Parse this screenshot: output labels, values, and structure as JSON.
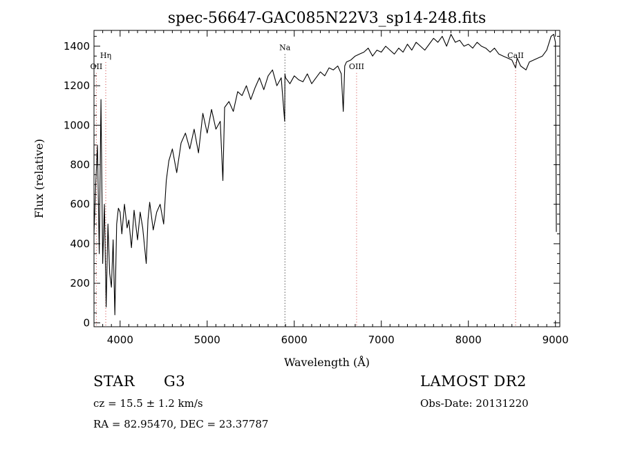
{
  "chart_data": {
    "type": "line",
    "title": "spec-56647-GAC085N22V3_sp14-248.fits",
    "xlabel": "Wavelength (Å)",
    "ylabel": "Flux (relative)",
    "xlim": [
      3700,
      9050
    ],
    "ylim": [
      -20,
      1480
    ],
    "xticks": [
      4000,
      5000,
      6000,
      7000,
      8000,
      9000
    ],
    "yticks": [
      0,
      200,
      400,
      600,
      800,
      1000,
      1200,
      1400
    ],
    "grid": false,
    "line_color": "#000000",
    "series": [
      {
        "x": [
          3700,
          3720,
          3740,
          3760,
          3780,
          3800,
          3820,
          3840,
          3860,
          3880,
          3900,
          3920,
          3940,
          3960,
          3980,
          4000,
          4020,
          4050,
          4080,
          4100,
          4130,
          4160,
          4200,
          4230,
          4260,
          4300,
          4320,
          4340,
          4380,
          4420,
          4460,
          4500,
          4530,
          4560,
          4600,
          4650,
          4700,
          4750,
          4800,
          4850,
          4900,
          4950,
          5000,
          5050,
          5100,
          5150,
          5180,
          5200,
          5250,
          5300,
          5350,
          5400,
          5450,
          5500,
          5550,
          5600,
          5650,
          5700,
          5750,
          5800,
          5850,
          5890,
          5893,
          5900,
          5950,
          6000,
          6050,
          6100,
          6150,
          6200,
          6250,
          6300,
          6350,
          6400,
          6450,
          6500,
          6540,
          6563,
          6580,
          6600,
          6650,
          6700,
          6750,
          6800,
          6850,
          6900,
          6950,
          7000,
          7050,
          7100,
          7150,
          7200,
          7250,
          7300,
          7350,
          7400,
          7450,
          7500,
          7550,
          7600,
          7650,
          7700,
          7750,
          7800,
          7850,
          7900,
          7950,
          8000,
          8050,
          8100,
          8150,
          8200,
          8250,
          8300,
          8350,
          8400,
          8450,
          8500,
          8542,
          8560,
          8600,
          8662,
          8700,
          8750,
          8800,
          8850,
          8900,
          8950,
          8980,
          9000,
          9010
        ],
        "values": [
          450,
          700,
          900,
          350,
          1130,
          300,
          600,
          80,
          500,
          250,
          180,
          420,
          40,
          500,
          580,
          560,
          450,
          600,
          480,
          520,
          380,
          570,
          420,
          560,
          480,
          300,
          520,
          610,
          470,
          560,
          600,
          500,
          720,
          820,
          880,
          760,
          910,
          960,
          880,
          980,
          860,
          1060,
          960,
          1080,
          980,
          1020,
          720,
          1090,
          1120,
          1070,
          1170,
          1150,
          1200,
          1130,
          1190,
          1240,
          1180,
          1250,
          1280,
          1200,
          1240,
          1020,
          1260,
          1240,
          1210,
          1250,
          1230,
          1220,
          1260,
          1210,
          1240,
          1270,
          1250,
          1290,
          1280,
          1300,
          1260,
          1070,
          1300,
          1320,
          1330,
          1350,
          1360,
          1370,
          1390,
          1350,
          1380,
          1370,
          1400,
          1380,
          1360,
          1390,
          1370,
          1410,
          1380,
          1420,
          1400,
          1380,
          1410,
          1440,
          1420,
          1450,
          1400,
          1460,
          1420,
          1430,
          1400,
          1410,
          1390,
          1420,
          1400,
          1390,
          1370,
          1390,
          1360,
          1350,
          1340,
          1330,
          1290,
          1340,
          1300,
          1280,
          1320,
          1330,
          1340,
          1350,
          1380,
          1450,
          1460,
          1420,
          460
        ]
      }
    ],
    "lines": [
      {
        "label": "OII",
        "x": 3727,
        "label_y": 1285
      },
      {
        "label": "Hη",
        "x": 3835,
        "label_y": 1340
      },
      {
        "label": "Na",
        "x": 5893,
        "label_y": 1380
      },
      {
        "label": "OIII",
        "x": 6716,
        "label_y": 1285
      },
      {
        "label": "CaII",
        "x": 8542,
        "label_y": 1340
      }
    ]
  },
  "footer": {
    "class_label": "STAR",
    "subclass": "G3",
    "survey": "LAMOST DR2",
    "cz": "cz = 15.5 ± 1.2 km/s",
    "obs_date": "Obs-Date: 20131220",
    "radec": "RA =  82.95470, DEC =  23.37787"
  }
}
